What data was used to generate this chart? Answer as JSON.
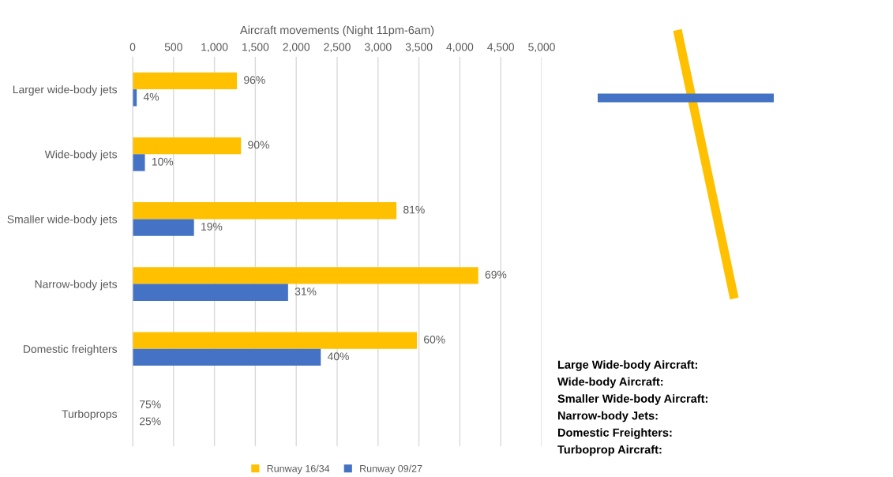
{
  "chart_data": {
    "type": "bar",
    "orientation": "horizontal",
    "xlabel": "Aircraft movements (Night 11pm-6am)",
    "categories": [
      "Larger wide-body jets",
      "Wide-body jets",
      "Smaller wide-body jets",
      "Narrow-body jets",
      "Domestic freighters",
      "Turboprops"
    ],
    "series": [
      {
        "name": "Runway 16/34",
        "color": "#ffc000",
        "values": [
          1275,
          1325,
          3225,
          4225,
          3475,
          0
        ]
      },
      {
        "name": "Runway 09/27",
        "color": "#4472c4",
        "values": [
          50,
          150,
          750,
          1900,
          2300,
          0
        ]
      }
    ],
    "xlim": [
      0,
      5000
    ],
    "xticks": [
      0,
      {
        "value": 500,
        "label": "500"
      },
      {
        "value": 1000,
        "label": "1,000"
      },
      {
        "value": 1500,
        "label": "1,500"
      },
      {
        "value": 2000,
        "label": "2,000"
      },
      {
        "value": 2500,
        "label": "2,500"
      },
      {
        "value": 3000,
        "label": "3,000"
      },
      {
        "value": 3500,
        "label": "3,500"
      },
      {
        "value": 4000,
        "label": "4,000"
      },
      {
        "value": 4500,
        "label": "4,500"
      },
      {
        "value": 5000,
        "label": "5,000"
      }
    ],
    "grid": "x",
    "legend": "bottom",
    "annotations": [
      {
        "text": "96%",
        "x": 1275,
        "y": "Larger wide-body jets"
      },
      {
        "text": "4%",
        "x": 50,
        "y": "Larger wide-body jets"
      },
      {
        "text": "90%",
        "x": 1325,
        "y": "Wide-body jets"
      },
      {
        "text": "10%",
        "x": 150,
        "y": "Wide-body jets"
      },
      {
        "text": "81%",
        "x": 3225,
        "y": "Smaller wide-body jets"
      },
      {
        "text": "19%",
        "x": 750,
        "y": "Smaller wide-body jets"
      },
      {
        "text": "69%",
        "x": 4225,
        "y": "Narrow-body jets"
      },
      {
        "text": "31%",
        "x": 1900,
        "y": "Narrow-body jets"
      },
      {
        "text": "60%",
        "x": 3475,
        "y": "Domestic freighters"
      },
      {
        "text": "40%",
        "x": 2300,
        "y": "Domestic freighters"
      },
      {
        "text": "75%",
        "x": 0,
        "y": "Turboprops"
      },
      {
        "text": "25%",
        "x": 0,
        "y": "Turboprops"
      },
      "Large Wide-body Aircraft:",
      "Wide-body Aircraft:",
      "Smaller Wide-body Aircraft:",
      "Narrow-body Jets:",
      "Domestic Freighters:",
      "Turboprop Aircraft:"
    ]
  }
}
